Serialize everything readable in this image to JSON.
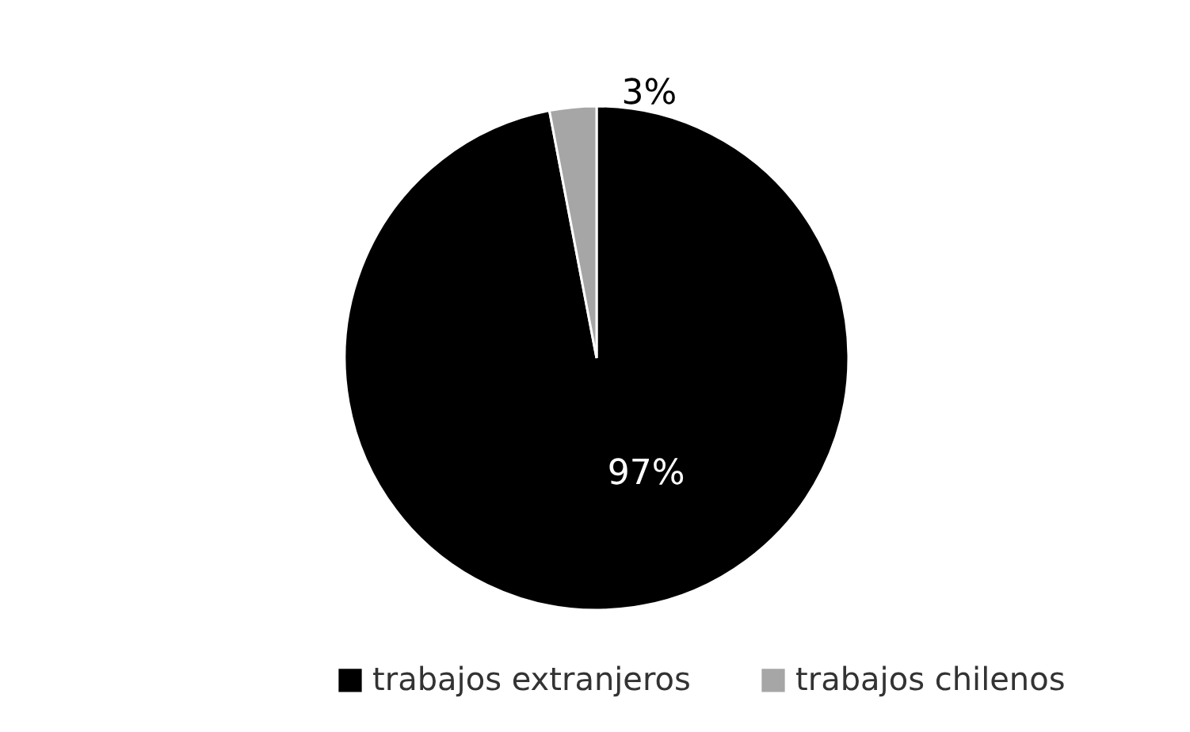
{
  "chart_data": {
    "type": "pie",
    "categories": [
      "trabajos extranjeros",
      "trabajos chilenos"
    ],
    "values": [
      97,
      3
    ],
    "colors": [
      "#000000",
      "#a6a6a6"
    ],
    "value_labels": [
      "97%",
      "3%"
    ],
    "legend": "bottom"
  }
}
